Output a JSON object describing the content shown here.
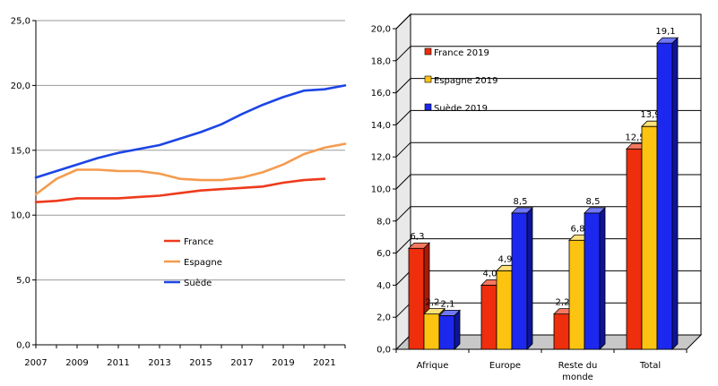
{
  "chart_data": [
    {
      "type": "line",
      "x": [
        2007,
        2008,
        2009,
        2010,
        2011,
        2012,
        2013,
        2014,
        2015,
        2016,
        2017,
        2018,
        2019,
        2020,
        2021,
        2022
      ],
      "x_tick_labels": [
        "2007",
        "2009",
        "2011",
        "2013",
        "2015",
        "2017",
        "2019",
        "2021"
      ],
      "y_tick_labels": [
        "0,0",
        "5,0",
        "10,0",
        "15,0",
        "20,0",
        "25,0"
      ],
      "ylim": [
        0,
        25
      ],
      "grid": true,
      "legend_position": "center",
      "series": [
        {
          "name": "France",
          "color": "#ee3a1c",
          "values": [
            11.0,
            11.1,
            11.3,
            11.3,
            11.3,
            11.4,
            11.5,
            11.7,
            11.9,
            12.0,
            12.1,
            12.2,
            12.5,
            12.7,
            12.8,
            null
          ]
        },
        {
          "name": "Espagne",
          "color": "#f59b4f",
          "values": [
            11.6,
            12.8,
            13.5,
            13.5,
            13.4,
            13.4,
            13.2,
            12.8,
            12.7,
            12.7,
            12.9,
            13.3,
            13.9,
            14.7,
            15.2,
            15.5
          ]
        },
        {
          "name": "Suède",
          "color": "#1c45e6",
          "values": [
            12.9,
            13.4,
            13.9,
            14.4,
            14.8,
            15.1,
            15.4,
            15.9,
            16.4,
            17.0,
            17.8,
            18.5,
            19.1,
            19.6,
            19.7,
            20.0
          ]
        }
      ]
    },
    {
      "type": "bar",
      "style": "3d",
      "categories": [
        "Afrique",
        "Europe",
        "Reste du monde",
        "Total"
      ],
      "category_labels": [
        [
          "Afrique"
        ],
        [
          "Europe"
        ],
        [
          "Reste du",
          "monde"
        ],
        [
          "Total"
        ]
      ],
      "y_tick_labels": [
        "0,0",
        "2,0",
        "4,0",
        "6,0",
        "8,0",
        "10,0",
        "12,0",
        "14,0",
        "16,0",
        "18,0",
        "20,0"
      ],
      "ylim": [
        0,
        20
      ],
      "grid": true,
      "legend_position": "top-left",
      "series": [
        {
          "name": "France  2019",
          "color": "#ee2e0c",
          "side_color": "#a81a05",
          "top_color": "#f5785f",
          "values": [
            6.3,
            4.0,
            2.2,
            12.5
          ],
          "labels": [
            "6,3",
            "4,0",
            "2,2",
            "12,5"
          ]
        },
        {
          "name": "Espagne 2019",
          "color": "#fcc410",
          "side_color": "#a8820a",
          "top_color": "#fde278",
          "values": [
            2.2,
            4.9,
            6.8,
            13.9
          ],
          "labels": [
            "2,2",
            "4,9",
            "6,8",
            "13,9"
          ]
        },
        {
          "name": "Suède 2019",
          "color": "#1c28ee",
          "side_color": "#0d149a",
          "top_color": "#6f78f5",
          "values": [
            2.1,
            8.5,
            8.5,
            19.1
          ],
          "labels": [
            "2,1",
            "8,5",
            "8,5",
            "19,1"
          ]
        }
      ]
    }
  ]
}
